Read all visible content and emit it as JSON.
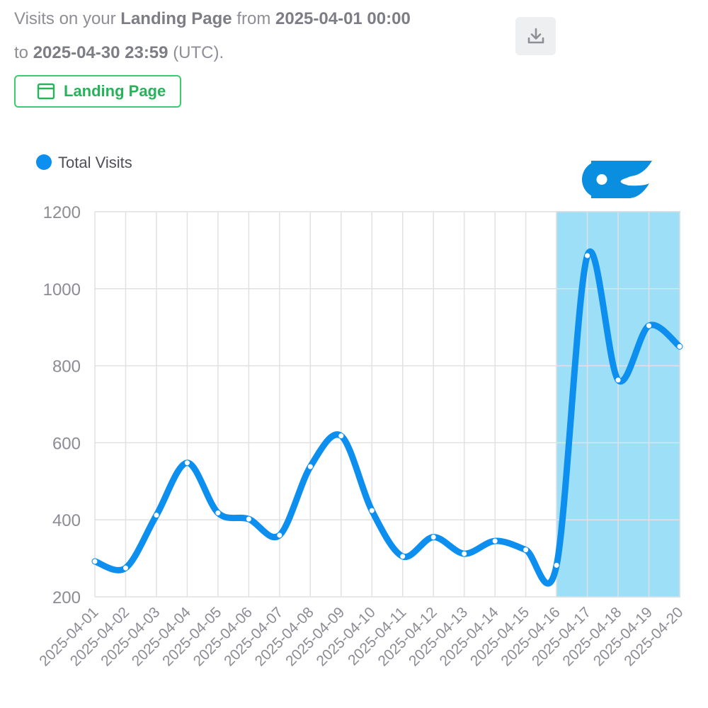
{
  "header": {
    "prefix": "Visits on your",
    "page_name": "Landing Page",
    "from_word": "from",
    "start": "2025-04-01 00:00",
    "to_word": "to",
    "end": "2025-04-30 23:59",
    "timezone": "(UTC)."
  },
  "download_icon": "download-icon",
  "filter": {
    "label": "Landing Page",
    "icon": "browser-window-icon",
    "color": "#27b35a"
  },
  "logo": {
    "icon": "oc-logo",
    "color": "#0a8fe0"
  },
  "chart_data": {
    "type": "line",
    "x": [
      "2025-04-01",
      "2025-04-02",
      "2025-04-03",
      "2025-04-04",
      "2025-04-05",
      "2025-04-06",
      "2025-04-07",
      "2025-04-08",
      "2025-04-09",
      "2025-04-10",
      "2025-04-11",
      "2025-04-12",
      "2025-04-13",
      "2025-04-14",
      "2025-04-15",
      "2025-04-16",
      "2025-04-17",
      "2025-04-18",
      "2025-04-19",
      "2025-04-20"
    ],
    "series": [
      {
        "name": "Total Visits",
        "color": "#0d8ff0",
        "values": [
          292,
          275,
          412,
          548,
          418,
          402,
          360,
          538,
          618,
          424,
          305,
          355,
          312,
          345,
          322,
          282,
          1086,
          763,
          904,
          850
        ]
      }
    ],
    "ylim": [
      200,
      1200
    ],
    "yticks": [
      200,
      400,
      600,
      800,
      1000,
      1200
    ],
    "highlight": {
      "from": "2025-04-16",
      "to": "2025-04-20",
      "color": "#9ddff7"
    },
    "grid": true,
    "legend": "top-left"
  }
}
